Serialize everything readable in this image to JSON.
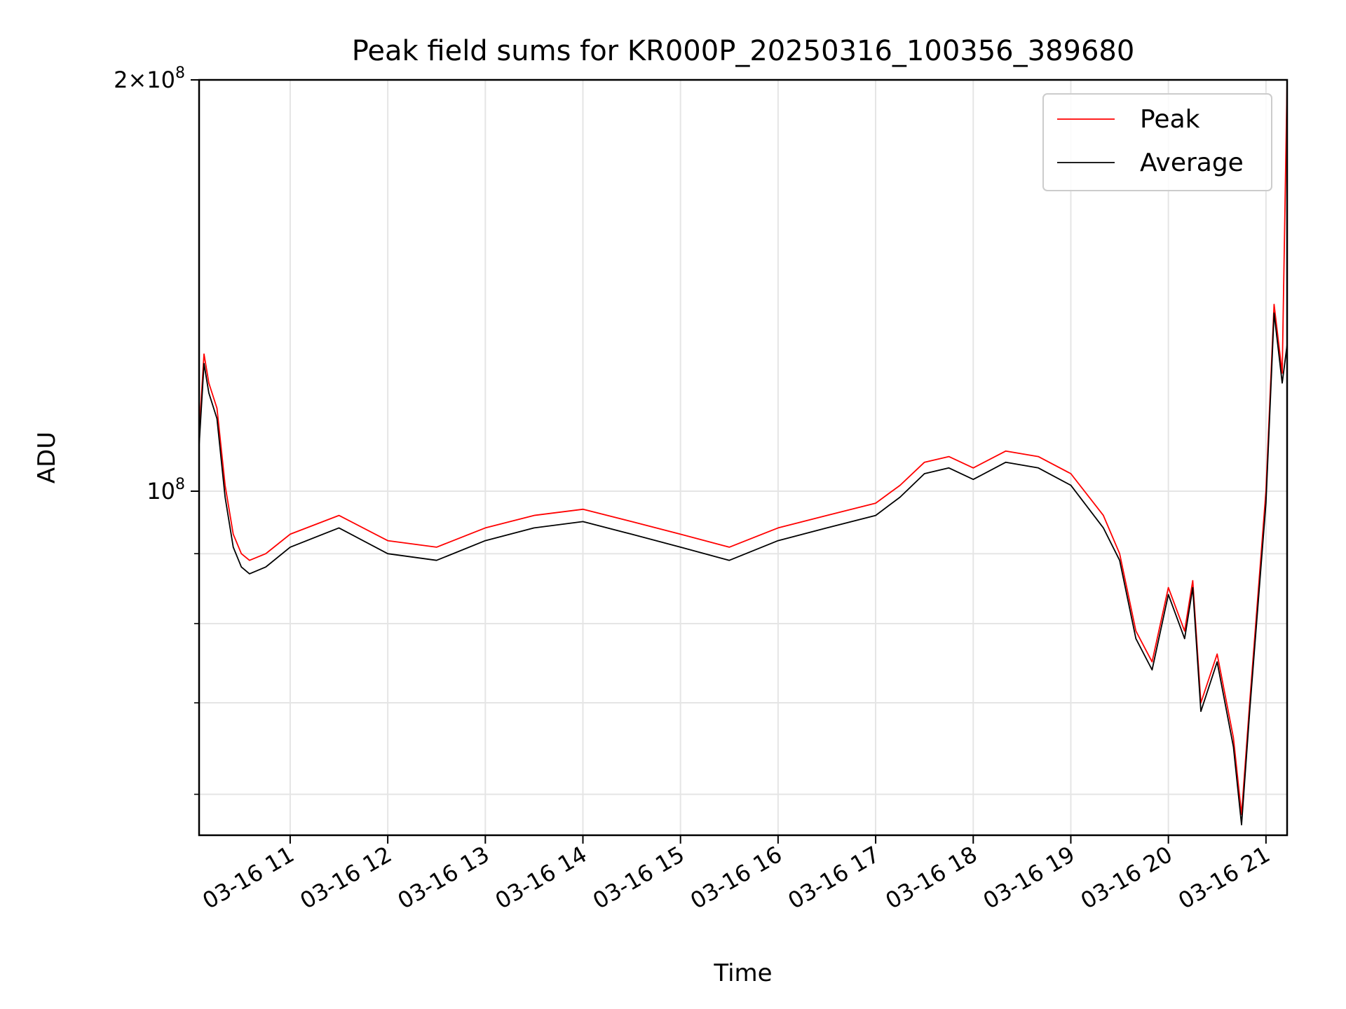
{
  "chart_data": {
    "type": "line",
    "title": "Peak field sums for KR000P_20250316_100356_389680",
    "xlabel": "Time",
    "ylabel": "ADU",
    "y_scale": "log",
    "ylim": [
      56000000.0,
      200000000.0
    ],
    "xlim": [
      "2025-03-16 10:04",
      "2025-03-16 21:13"
    ],
    "x_tick_labels": [
      "03-16 11",
      "03-16 12",
      "03-16 13",
      "03-16 14",
      "03-16 15",
      "03-16 16",
      "03-16 17",
      "03-16 18",
      "03-16 19",
      "03-16 20",
      "03-16 21"
    ],
    "x_tick_hours": [
      11,
      12,
      13,
      14,
      15,
      16,
      17,
      18,
      19,
      20,
      21
    ],
    "y_tick_labels": [
      {
        "value": 100000000.0,
        "base": "10",
        "exp": "8",
        "coef": ""
      },
      {
        "value": 200000000.0,
        "base": "10",
        "exp": "8",
        "coef": "2×"
      }
    ],
    "y_minor_ticks": [
      60000000.0,
      70000000.0,
      80000000.0,
      90000000.0
    ],
    "grid": true,
    "legend": {
      "position": "top-right"
    },
    "series": [
      {
        "name": "Peak",
        "color": "#ff0000",
        "x": [
          "10:04",
          "10:07",
          "10:10",
          "10:15",
          "10:20",
          "10:25",
          "10:30",
          "10:35",
          "10:45",
          "11:00",
          "11:30",
          "12:00",
          "12:30",
          "13:00",
          "13:30",
          "14:00",
          "14:30",
          "15:00",
          "15:30",
          "16:00",
          "16:30",
          "17:00",
          "17:15",
          "17:30",
          "17:45",
          "18:00",
          "18:20",
          "18:40",
          "19:00",
          "19:20",
          "19:30",
          "19:40",
          "19:50",
          "20:00",
          "20:10",
          "20:15",
          "20:20",
          "20:30",
          "20:40",
          "20:45",
          "20:50",
          "21:00",
          "21:05",
          "21:10",
          "21:13"
        ],
        "y": [
          110000000.0,
          126000000.0,
          120000000.0,
          115000000.0,
          101000000.0,
          93000000.0,
          90000000.0,
          89000000.0,
          90000000.0,
          93000000.0,
          96000000.0,
          92000000.0,
          91000000.0,
          94000000.0,
          96000000.0,
          97000000.0,
          95000000.0,
          93000000.0,
          91000000.0,
          94000000.0,
          96000000.0,
          98000000.0,
          101000000.0,
          105000000.0,
          106000000.0,
          104000000.0,
          107000000.0,
          106000000.0,
          103000000.0,
          96000000.0,
          90000000.0,
          79000000.0,
          75000000.0,
          85000000.0,
          79000000.0,
          86000000.0,
          70000000.0,
          76000000.0,
          66000000.0,
          58000000.0,
          70000000.0,
          100000000.0,
          137000000.0,
          122000000.0,
          200000000.0
        ]
      },
      {
        "name": "Average",
        "color": "#000000",
        "x": [
          "10:04",
          "10:07",
          "10:10",
          "10:15",
          "10:20",
          "10:25",
          "10:30",
          "10:35",
          "10:45",
          "11:00",
          "11:30",
          "12:00",
          "12:30",
          "13:00",
          "13:30",
          "14:00",
          "14:30",
          "15:00",
          "15:30",
          "16:00",
          "16:30",
          "17:00",
          "17:15",
          "17:30",
          "17:45",
          "18:00",
          "18:20",
          "18:40",
          "19:00",
          "19:20",
          "19:30",
          "19:40",
          "19:50",
          "20:00",
          "20:10",
          "20:15",
          "20:20",
          "20:30",
          "20:40",
          "20:45",
          "20:50",
          "21:00",
          "21:05",
          "21:10",
          "21:13"
        ],
        "y": [
          108000000.0,
          124000000.0,
          118000000.0,
          113000000.0,
          99000000.0,
          91000000.0,
          88000000.0,
          87000000.0,
          88000000.0,
          91000000.0,
          94000000.0,
          90000000.0,
          89000000.0,
          92000000.0,
          94000000.0,
          95000000.0,
          93000000.0,
          91000000.0,
          89000000.0,
          92000000.0,
          94000000.0,
          96000000.0,
          99000000.0,
          103000000.0,
          104000000.0,
          102000000.0,
          105000000.0,
          104000000.0,
          101000000.0,
          94000000.0,
          89000000.0,
          78000000.0,
          74000000.0,
          84000000.0,
          78000000.0,
          85000000.0,
          69000000.0,
          75000000.0,
          65000000.0,
          57000000.0,
          69000000.0,
          98000000.0,
          135000000.0,
          120000000.0,
          128000000.0
        ]
      }
    ]
  }
}
